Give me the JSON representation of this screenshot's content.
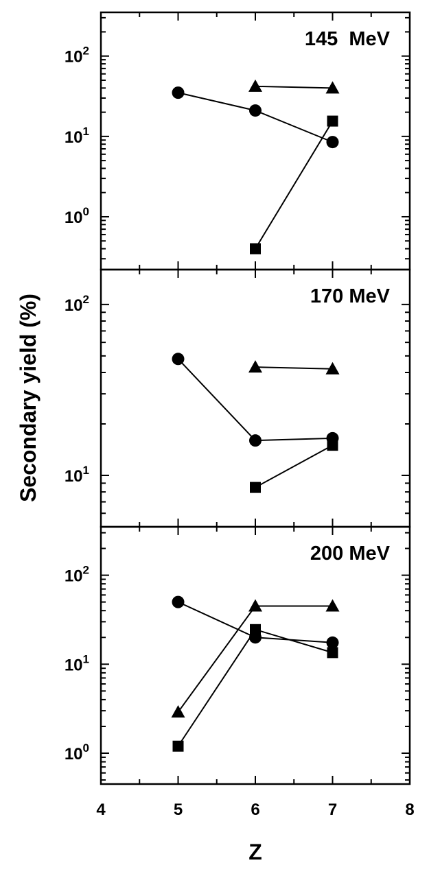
{
  "chart_data": {
    "type": "scatter",
    "ylabel": "Secondary yield (%)",
    "xlabel": "Z",
    "xlim": [
      4,
      8
    ],
    "x_ticks": [
      "4",
      "5",
      "6",
      "7",
      "8"
    ],
    "y_scale": "log",
    "grid": false,
    "legend": "none",
    "panels": [
      {
        "title": "145  MeV",
        "ylim": [
          0.22,
          350
        ],
        "y_tick_labels": [
          {
            "value": 1,
            "base": "10",
            "exp": "0"
          },
          {
            "value": 10,
            "base": "10",
            "exp": "1"
          },
          {
            "value": 100,
            "base": "10",
            "exp": "2"
          }
        ],
        "series": [
          {
            "marker": "triangle",
            "x": [
              6,
              7
            ],
            "y": [
              42,
              40
            ]
          },
          {
            "marker": "circle",
            "x": [
              5,
              6,
              7
            ],
            "y": [
              35,
              21,
              8.5
            ]
          },
          {
            "marker": "square",
            "x": [
              6,
              7
            ],
            "y": [
              0.4,
              15.5
            ]
          }
        ]
      },
      {
        "title": "170 MeV",
        "ylim": [
          5,
          160
        ],
        "y_tick_labels": [
          {
            "value": 10,
            "base": "10",
            "exp": "1"
          },
          {
            "value": 100,
            "base": "10",
            "exp": "2"
          }
        ],
        "series": [
          {
            "marker": "triangle",
            "x": [
              6,
              7
            ],
            "y": [
              43,
              42
            ]
          },
          {
            "marker": "circle",
            "x": [
              5,
              6,
              7
            ],
            "y": [
              48,
              16,
              16.5
            ]
          },
          {
            "marker": "square",
            "x": [
              6,
              7
            ],
            "y": [
              8.5,
              15
            ]
          }
        ]
      },
      {
        "title": "200 MeV",
        "ylim": [
          0.45,
          350
        ],
        "y_tick_labels": [
          {
            "value": 1,
            "base": "10",
            "exp": "0"
          },
          {
            "value": 10,
            "base": "10",
            "exp": "1"
          },
          {
            "value": 100,
            "base": "10",
            "exp": "2"
          }
        ],
        "series": [
          {
            "marker": "triangle",
            "x": [
              5,
              6,
              7
            ],
            "y": [
              2.9,
              45,
              45
            ]
          },
          {
            "marker": "circle",
            "x": [
              5,
              6,
              7
            ],
            "y": [
              50,
              20,
              17.5
            ]
          },
          {
            "marker": "square",
            "x": [
              5,
              6,
              7
            ],
            "y": [
              1.2,
              24.5,
              13.5
            ]
          }
        ]
      }
    ]
  }
}
